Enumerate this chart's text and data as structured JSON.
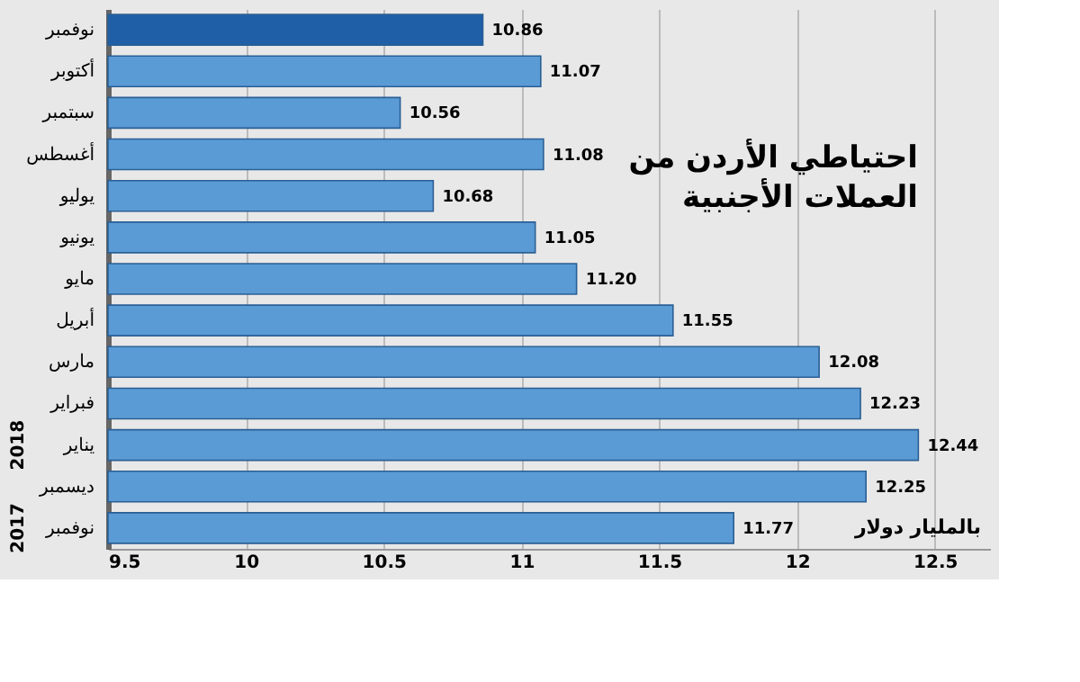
{
  "chart_data": {
    "type": "bar",
    "orientation": "horizontal",
    "title": "احتياطي الأردن من\nالعملات الأجنبية",
    "categories": [
      "نوفمبر",
      "أكتوبر",
      "سبتمبر",
      "أغسطس",
      "يوليو",
      "يونيو",
      "مايو",
      "أبريل",
      "مارس",
      "فبراير",
      "يناير",
      "ديسمبر",
      "نوفمبر"
    ],
    "values": [
      10.86,
      11.07,
      10.56,
      11.08,
      10.68,
      11.05,
      11.2,
      11.55,
      12.08,
      12.23,
      12.44,
      12.25,
      11.77
    ],
    "colors": [
      "#1f5fa8",
      "#5b9bd5",
      "#5b9bd5",
      "#5b9bd5",
      "#5b9bd5",
      "#5b9bd5",
      "#5b9bd5",
      "#5b9bd5",
      "#5b9bd5",
      "#5b9bd5",
      "#5b9bd5",
      "#5b9bd5",
      "#5b9bd5"
    ],
    "value_labels": [
      "10.86",
      "11.07",
      "10.56",
      "11.08",
      "10.68",
      "11.05",
      "11.20",
      "11.55",
      "12.08",
      "12.23",
      "12.44",
      "12.25",
      "11.77"
    ],
    "xlim": [
      9.5,
      12.7
    ],
    "xticks": [
      9.5,
      10,
      10.5,
      11,
      11.5,
      12,
      12.5
    ],
    "grid": "x",
    "annotations": [
      "بالمليار دولار",
      "2018",
      "2017"
    ]
  }
}
